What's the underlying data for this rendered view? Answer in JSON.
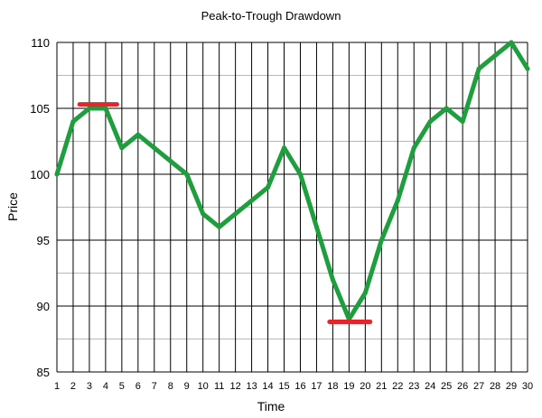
{
  "chart_data": {
    "type": "line",
    "title": "Peak-to-Trough Drawdown",
    "xlabel": "Time",
    "ylabel": "Price",
    "xlim": [
      1,
      30
    ],
    "ylim": [
      85,
      110
    ],
    "x_ticks": [
      1,
      2,
      3,
      4,
      5,
      6,
      7,
      8,
      9,
      10,
      11,
      12,
      13,
      14,
      15,
      16,
      17,
      18,
      19,
      20,
      21,
      22,
      23,
      24,
      25,
      26,
      27,
      28,
      29,
      30
    ],
    "y_ticks": [
      85,
      90,
      95,
      100,
      105,
      110
    ],
    "y_minor_step": 2.5,
    "grid": true,
    "x": [
      1,
      2,
      3,
      4,
      5,
      6,
      7,
      8,
      9,
      10,
      11,
      12,
      13,
      14,
      15,
      16,
      17,
      18,
      19,
      20,
      21,
      22,
      23,
      24,
      25,
      26,
      27,
      28,
      29,
      30
    ],
    "series": [
      {
        "color": "#1e9e3c",
        "values": [
          100,
          104,
          105,
          105,
          102,
          103,
          102,
          101,
          100,
          97,
          96,
          97,
          98,
          99,
          102,
          100,
          96,
          92,
          89,
          91,
          95,
          98,
          102,
          104,
          105,
          104,
          108,
          109,
          110,
          108
        ]
      }
    ],
    "annotations": [
      {
        "kind": "peak-marker",
        "color": "#e8242b",
        "x_from": 2.4,
        "x_to": 4.7,
        "y": 105.3
      },
      {
        "kind": "trough-marker",
        "color": "#e8242b",
        "x_from": 17.8,
        "x_to": 20.3,
        "y": 88.8
      }
    ]
  }
}
